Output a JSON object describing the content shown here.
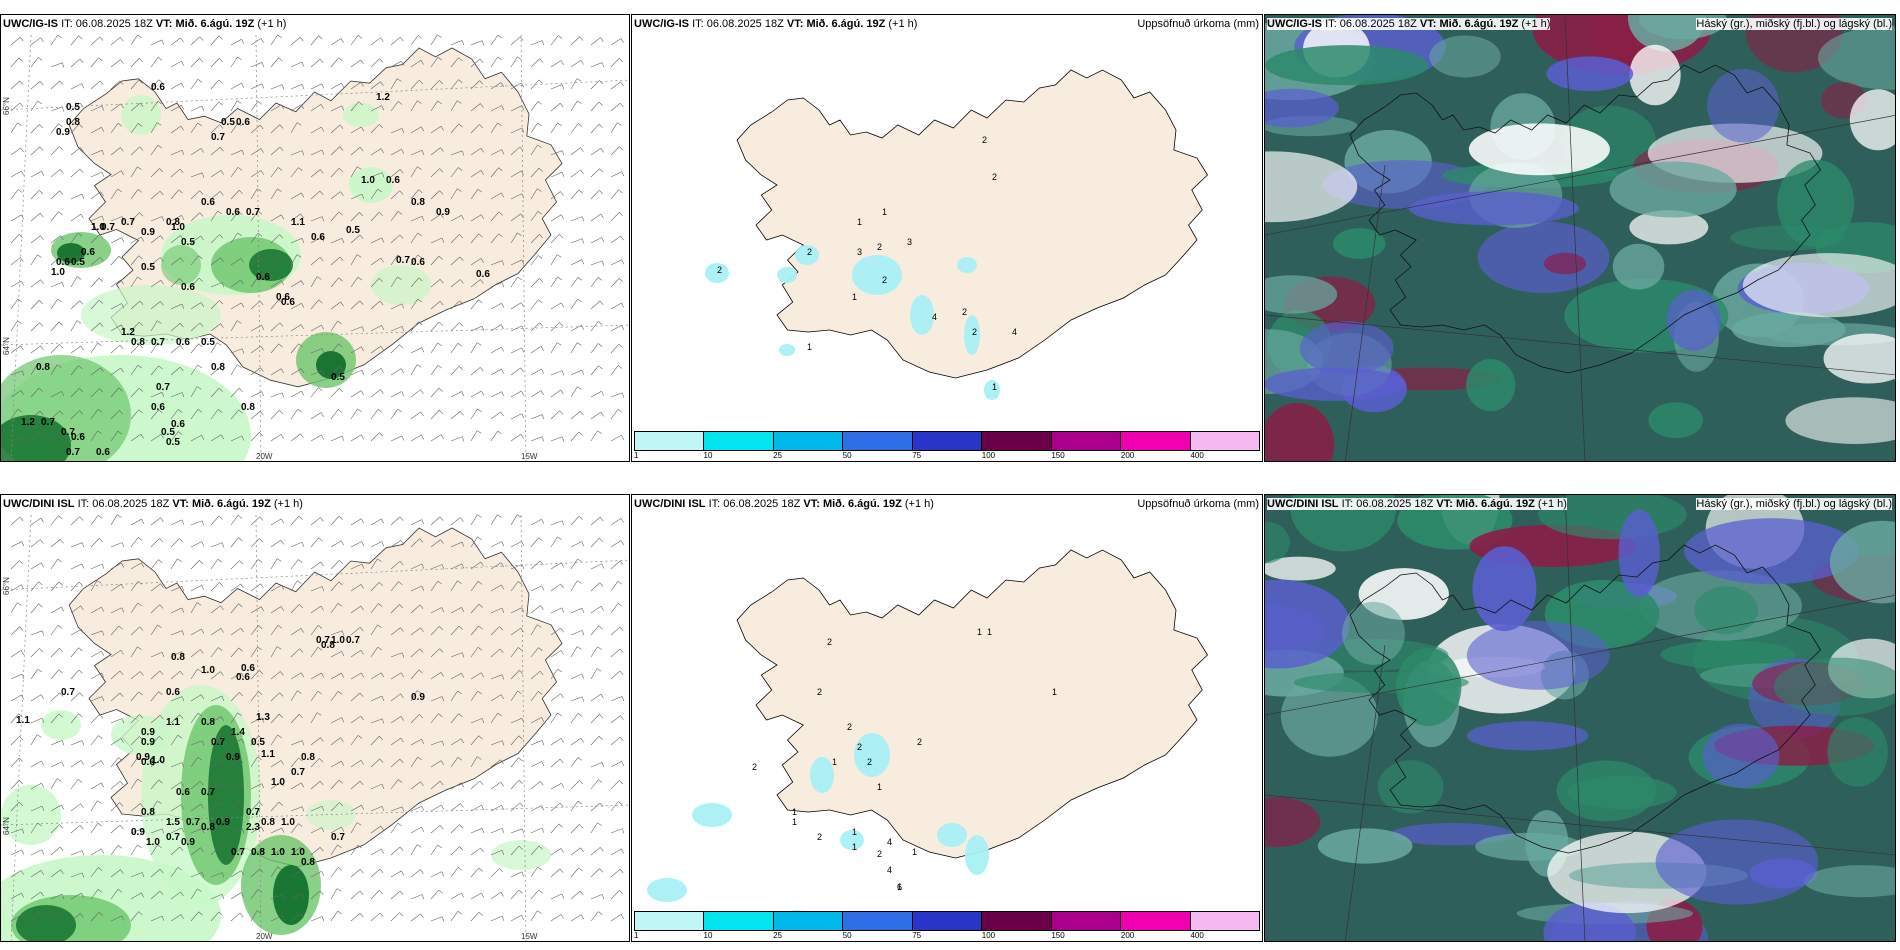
{
  "colors": {
    "land": "#f7ecdd",
    "precip_light": "#c8f7c8",
    "precip_mid": "#6cc66c",
    "precip_dark": "#0e6b2a",
    "cloud_high": "#8b1d47",
    "cloud_mid": "#2c8a6a",
    "cloud_low": "#5a5fd0",
    "cloud_bg": "#2f5f5a"
  },
  "grid_labels": {
    "lat_n66": "66°N",
    "lat_n64": "64°N",
    "lon_20w": "20W",
    "lon_15w": "15W"
  },
  "rows": [
    {
      "panels": [
        {
          "model": "UWC/IG-IS",
          "it_label": "IT:",
          "it_value": "06.08.2025 18Z",
          "vt_label": "VT:",
          "vt_value": "Mið. 6.ágú. 19Z",
          "offset": "(+1 h)",
          "values": [
            "0.6",
            "1.2",
            "0.5",
            "0.8",
            "0.9",
            "0.5",
            "0.6",
            "0.7",
            "0.6",
            "0.6",
            "0.7",
            "1.0",
            "0.5",
            "0.6",
            "0.6",
            "0.6",
            "0.7",
            "0.8",
            "0.9",
            "1.0",
            "0.7",
            "0.9",
            "0.8",
            "0.7",
            "1.0",
            "0.5",
            "1.1",
            "0.6",
            "0.5",
            "0.6",
            "0.6",
            "1.2",
            "0.8",
            "0.7",
            "0.6",
            "0.5",
            "0.8",
            "0.8",
            "0.7",
            "0.6",
            "0.5",
            "0.5",
            "0.6",
            "1.2",
            "0.7",
            "0.7",
            "0.7",
            "0.6",
            "0.6",
            "0.8",
            "0.6",
            "0.5",
            "1.0",
            "0.6",
            "0.6",
            "0.6",
            "0.5"
          ]
        },
        {
          "model": "UWC/IG-IS",
          "it_label": "IT:",
          "it_value": "06.08.2025 18Z",
          "vt_label": "VT:",
          "vt_value": "Mið. 6.ágú. 19Z",
          "offset": "(+1 h)",
          "title_right": "Uppsöfnuð úrkoma (mm)",
          "values": [
            "2",
            "2",
            "1",
            "1",
            "3",
            "2",
            "2",
            "2",
            "2",
            "1",
            "1",
            "4",
            "2",
            "1",
            "4",
            "3",
            "2"
          ],
          "colorbar_labels": [
            "1",
            "10",
            "25",
            "50",
            "75",
            "100",
            "150",
            "200",
            "400"
          ],
          "colorbar_colors": [
            "#bff7f7",
            "#00e5f0",
            "#00b8ea",
            "#2f6fe6",
            "#2836c8",
            "#6a0048",
            "#a8008c",
            "#f000b0",
            "#f5b8f0"
          ]
        },
        {
          "model": "UWC/IG-IS",
          "it_label": "IT:",
          "it_value": "06.08.2025 18Z",
          "vt_label": "VT:",
          "vt_value": "Mið. 6.ágú. 19Z",
          "offset": "(+1 h)",
          "title_right": "Háský (gr.), miðský (fj.bl.) og lágský (bl.)"
        }
      ]
    },
    {
      "panels": [
        {
          "model": "UWC/DINI ISL",
          "it_label": "IT:",
          "it_value": "06.08.2025 18Z",
          "vt_label": "VT:",
          "vt_value": "Mið. 6.ágú. 19Z",
          "offset": "(+1 h)",
          "values": [
            "0.7",
            "0.6",
            "1.1",
            "1.0",
            "0.6",
            "0.7",
            "1.0",
            "0.7",
            "0.8",
            "0.9",
            "0.8",
            "0.6",
            "1.1",
            "0.8",
            "1.3",
            "0.9",
            "0.9",
            "0.9",
            "1.0",
            "0.6",
            "0.7",
            "1.4",
            "0.5",
            "0.9",
            "1.1",
            "0.8",
            "0.7",
            "1.0",
            "0.7",
            "0.6",
            "0.8",
            "1.5",
            "0.7",
            "0.8",
            "0.9",
            "0.7",
            "0.8",
            "1.0",
            "0.9",
            "1.0",
            "0.7",
            "0.9",
            "0.7",
            "0.8",
            "1.0",
            "1.0",
            "0.8",
            "2.3",
            "0.7"
          ]
        },
        {
          "model": "UWC/DINI ISL",
          "it_label": "IT:",
          "it_value": "06.08.2025 18Z",
          "vt_label": "VT:",
          "vt_value": "Mið. 6.ágú. 19Z",
          "offset": "(+1 h)",
          "title_right": "Uppsöfnuð úrkoma (mm)",
          "values": [
            "1",
            "1",
            "1",
            "2",
            "2",
            "2",
            "2",
            "2",
            "1",
            "2",
            "1",
            "1",
            "1",
            "2",
            "4",
            "1",
            "2",
            "1",
            "2",
            "1",
            "4",
            "6",
            "1"
          ],
          "colorbar_labels": [
            "1",
            "10",
            "25",
            "50",
            "75",
            "100",
            "150",
            "200",
            "400"
          ],
          "colorbar_colors": [
            "#bff7f7",
            "#00e5f0",
            "#00b8ea",
            "#2f6fe6",
            "#2836c8",
            "#6a0048",
            "#a8008c",
            "#f000b0",
            "#f5b8f0"
          ]
        },
        {
          "model": "UWC/DINI ISL",
          "it_label": "IT:",
          "it_value": "06.08.2025 18Z",
          "vt_label": "VT:",
          "vt_value": "Mið. 6.ágú. 19Z",
          "offset": "(+1 h)",
          "title_right": "Háský (gr.), miðský (fj.bl.) og lágský (bl.)"
        }
      ]
    }
  ]
}
